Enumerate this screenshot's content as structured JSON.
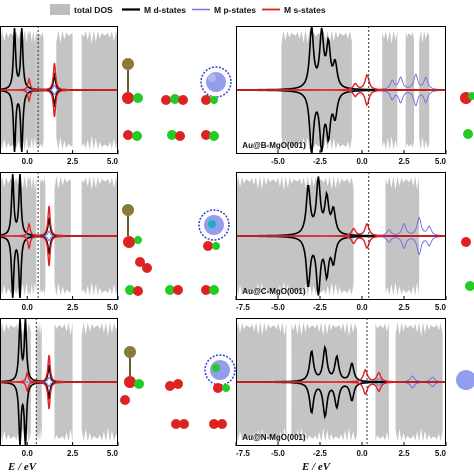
{
  "legend": [
    {
      "label": "total DOS",
      "color": "#bdbdbd",
      "kind": "fill"
    },
    {
      "label": "M d-states",
      "color": "#000000",
      "kind": "line"
    },
    {
      "label": "M p-states",
      "color": "#7777dd",
      "kind": "line"
    },
    {
      "label": "M s-states",
      "color": "#dd2222",
      "kind": "line"
    }
  ],
  "xlabel": "E / eV",
  "colors": {
    "total": "#c4c4c4",
    "d": "#000000",
    "p": "#6a6ae0",
    "s": "#e02020",
    "fermi": "#333333"
  },
  "chart_data": [
    {
      "type": "area",
      "row": 0,
      "panel": "left",
      "title": "",
      "xlim": [
        -1.5,
        5.0
      ],
      "ticks": [
        0.0,
        2.5,
        5.0
      ],
      "fermi": 0.6,
      "peaks": {
        "d": [
          [
            -0.7,
            1.0
          ],
          [
            -0.3,
            1.0
          ],
          [
            1.5,
            0.25
          ]
        ],
        "s": [
          [
            0.1,
            0.18
          ],
          [
            1.5,
            0.45
          ]
        ],
        "p": [
          [
            1.5,
            0.08
          ]
        ]
      },
      "total_bands": [
        [
          -1.5,
          0.2
        ],
        [
          0.0,
          0.5
        ],
        [
          0.5,
          0.9
        ],
        [
          1.6,
          2.5
        ],
        [
          3.0,
          5.0
        ]
      ]
    },
    {
      "type": "area",
      "row": 0,
      "panel": "right",
      "title": "Au@B-MgO(001)",
      "xlim": [
        -7.5,
        5.0
      ],
      "ticks": [
        -5.0,
        -2.5,
        0.0,
        2.5,
        5.0
      ],
      "fermi": 0.4,
      "peaks": {
        "d": [
          [
            -3.0,
            1.0
          ],
          [
            -2.4,
            0.9
          ],
          [
            -2.0,
            0.7
          ],
          [
            -1.6,
            0.4
          ]
        ],
        "s": [
          [
            0.3,
            0.25
          ],
          [
            -0.4,
            0.1
          ]
        ],
        "p": [
          [
            1.8,
            0.15
          ],
          [
            2.3,
            0.2
          ],
          [
            3.2,
            0.25
          ],
          [
            3.8,
            0.2
          ]
        ]
      },
      "total_bands": [
        [
          -4.8,
          -0.6
        ],
        [
          1.2,
          2.1
        ],
        [
          2.6,
          3.1
        ],
        [
          3.4,
          4.0
        ]
      ]
    },
    {
      "type": "area",
      "row": 1,
      "panel": "left",
      "title": "",
      "xlim": [
        -1.5,
        5.0
      ],
      "ticks": [
        0.0,
        2.5,
        5.0
      ],
      "fermi": 0.6,
      "peaks": {
        "d": [
          [
            -0.8,
            1.0
          ],
          [
            -0.4,
            1.0
          ],
          [
            1.2,
            0.3
          ]
        ],
        "s": [
          [
            0.1,
            0.2
          ],
          [
            1.2,
            0.5
          ]
        ],
        "p": [
          [
            1.2,
            0.08
          ]
        ]
      },
      "total_bands": [
        [
          -1.5,
          0.2
        ],
        [
          0.0,
          0.5
        ],
        [
          0.7,
          1.0
        ],
        [
          1.5,
          2.4
        ],
        [
          3.0,
          5.0
        ]
      ]
    },
    {
      "type": "area",
      "row": 1,
      "panel": "right",
      "title": "Au@C-MgO(001)",
      "xlim": [
        -7.5,
        5.0
      ],
      "ticks": [
        -7.5,
        -5.0,
        -2.5,
        0.0,
        2.5,
        5.0
      ],
      "fermi": 0.4,
      "peaks": {
        "d": [
          [
            -3.2,
            0.8
          ],
          [
            -2.6,
            0.9
          ],
          [
            -2.1,
            0.6
          ],
          [
            -1.7,
            0.4
          ]
        ],
        "s": [
          [
            0.3,
            0.2
          ],
          [
            -0.5,
            0.12
          ]
        ],
        "p": [
          [
            1.6,
            0.1
          ],
          [
            2.5,
            0.2
          ],
          [
            3.4,
            0.3
          ],
          [
            4.0,
            0.15
          ]
        ]
      },
      "total_bands": [
        [
          -7.5,
          -0.5
        ],
        [
          1.4,
          3.4
        ]
      ]
    },
    {
      "type": "area",
      "row": 2,
      "panel": "left",
      "title": "",
      "xlim": [
        -1.5,
        5.0
      ],
      "ticks": [
        0.0,
        2.5,
        5.0
      ],
      "fermi": 0.5,
      "peaks": {
        "d": [
          [
            -0.4,
            1.0
          ],
          [
            -0.1,
            1.0
          ],
          [
            1.2,
            0.25
          ]
        ],
        "s": [
          [
            0.0,
            0.15
          ],
          [
            1.2,
            0.45
          ]
        ],
        "p": [
          [
            1.2,
            0.08
          ]
        ]
      },
      "total_bands": [
        [
          -1.5,
          0.2
        ],
        [
          0.5,
          0.8
        ],
        [
          1.5,
          2.5
        ],
        [
          3.0,
          5.0
        ]
      ]
    },
    {
      "type": "area",
      "row": 2,
      "panel": "right",
      "title": "Au@N-MgO(001)",
      "xlim": [
        -7.5,
        5.0
      ],
      "ticks": [
        -7.5,
        -5.0,
        -2.5,
        0.0,
        2.5,
        5.0
      ],
      "fermi": 0.3,
      "peaks": {
        "d": [
          [
            -3.0,
            0.5
          ],
          [
            -2.2,
            0.55
          ],
          [
            -1.5,
            0.4
          ],
          [
            -0.6,
            0.3
          ]
        ],
        "s": [
          [
            0.2,
            0.2
          ],
          [
            1.0,
            0.15
          ]
        ],
        "p": [
          [
            1.0,
            0.06
          ],
          [
            3.0,
            0.1
          ],
          [
            4.2,
            0.08
          ]
        ]
      },
      "total_bands": [
        [
          -7.5,
          -4.5
        ],
        [
          -4.2,
          -0.3
        ],
        [
          0.8,
          1.6
        ],
        [
          2.0,
          4.8
        ]
      ]
    }
  ]
}
